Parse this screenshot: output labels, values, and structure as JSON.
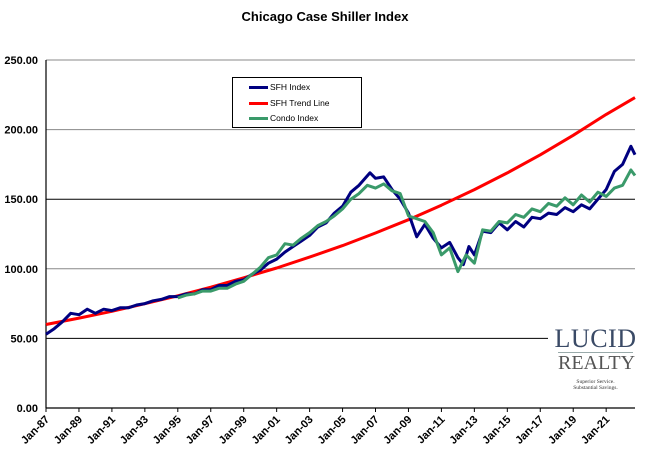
{
  "chart_data": {
    "type": "line",
    "title": "Chicago Case Shiller Index",
    "xlabel": "",
    "ylabel": "",
    "ylim": [
      0,
      250
    ],
    "yticks": [
      "0.00",
      "50.00",
      "100.00",
      "150.00",
      "200.00",
      "250.00"
    ],
    "xticks": [
      "Jan-87",
      "Jan-89",
      "Jan-91",
      "Jan-93",
      "Jan-95",
      "Jan-97",
      "Jan-99",
      "Jan-01",
      "Jan-03",
      "Jan-05",
      "Jan-07",
      "Jan-09",
      "Jan-11",
      "Jan-13",
      "Jan-15",
      "Jan-17",
      "Jan-19",
      "Jan-21"
    ],
    "xrange": [
      "1987-01",
      "2022-10"
    ],
    "grid": true,
    "legend_position": "top-center",
    "series": [
      {
        "name": "SFH Index",
        "color": "#000080",
        "points": [
          [
            "1987-01",
            53
          ],
          [
            "1987-07",
            57
          ],
          [
            "1988-01",
            62
          ],
          [
            "1988-07",
            68
          ],
          [
            "1989-01",
            67
          ],
          [
            "1989-07",
            71
          ],
          [
            "1990-01",
            68
          ],
          [
            "1990-07",
            71
          ],
          [
            "1991-01",
            70
          ],
          [
            "1991-07",
            72
          ],
          [
            "1992-01",
            72
          ],
          [
            "1992-07",
            74
          ],
          [
            "1993-01",
            75
          ],
          [
            "1993-07",
            77
          ],
          [
            "1994-01",
            78
          ],
          [
            "1994-07",
            80
          ],
          [
            "1995-01",
            80
          ],
          [
            "1995-07",
            82
          ],
          [
            "1996-01",
            82
          ],
          [
            "1996-07",
            85
          ],
          [
            "1997-01",
            85
          ],
          [
            "1997-07",
            88
          ],
          [
            "1998-01",
            88
          ],
          [
            "1998-07",
            91
          ],
          [
            "1999-01",
            92
          ],
          [
            "1999-07",
            96
          ],
          [
            "2000-01",
            99
          ],
          [
            "2000-07",
            104
          ],
          [
            "2001-01",
            107
          ],
          [
            "2001-07",
            112
          ],
          [
            "2002-01",
            116
          ],
          [
            "2002-07",
            120
          ],
          [
            "2003-01",
            124
          ],
          [
            "2003-07",
            130
          ],
          [
            "2004-01",
            133
          ],
          [
            "2004-07",
            140
          ],
          [
            "2005-01",
            145
          ],
          [
            "2005-07",
            155
          ],
          [
            "2006-01",
            160
          ],
          [
            "2006-09",
            169
          ],
          [
            "2007-01",
            165
          ],
          [
            "2007-07",
            166
          ],
          [
            "2008-01",
            157
          ],
          [
            "2008-07",
            150
          ],
          [
            "2009-01",
            140
          ],
          [
            "2009-07",
            123
          ],
          [
            "2010-01",
            132
          ],
          [
            "2010-07",
            122
          ],
          [
            "2011-01",
            115
          ],
          [
            "2011-07",
            119
          ],
          [
            "2012-01",
            108
          ],
          [
            "2012-05",
            103
          ],
          [
            "2012-09",
            116
          ],
          [
            "2013-01",
            110
          ],
          [
            "2013-07",
            127
          ],
          [
            "2014-01",
            126
          ],
          [
            "2014-07",
            133
          ],
          [
            "2015-01",
            128
          ],
          [
            "2015-07",
            134
          ],
          [
            "2016-01",
            130
          ],
          [
            "2016-07",
            137
          ],
          [
            "2017-01",
            136
          ],
          [
            "2017-07",
            140
          ],
          [
            "2018-01",
            139
          ],
          [
            "2018-07",
            144
          ],
          [
            "2019-01",
            141
          ],
          [
            "2019-07",
            146
          ],
          [
            "2020-01",
            143
          ],
          [
            "2020-07",
            150
          ],
          [
            "2021-01",
            157
          ],
          [
            "2021-07",
            170
          ],
          [
            "2022-01",
            175
          ],
          [
            "2022-07",
            188
          ],
          [
            "2022-10",
            182
          ]
        ]
      },
      {
        "name": "SFH Trend Line",
        "color": "#ff0000",
        "points": [
          [
            "1987-01",
            60
          ],
          [
            "1989-01",
            64.6
          ],
          [
            "1991-01",
            69.5
          ],
          [
            "1993-01",
            74.9
          ],
          [
            "1995-01",
            80.6
          ],
          [
            "1997-01",
            86.8
          ],
          [
            "1999-01",
            93.5
          ],
          [
            "2001-01",
            100.6
          ],
          [
            "2003-01",
            108.4
          ],
          [
            "2005-01",
            116.7
          ],
          [
            "2007-01",
            125.7
          ],
          [
            "2009-01",
            135.3
          ],
          [
            "2011-01",
            145.7
          ],
          [
            "2013-01",
            156.9
          ],
          [
            "2015-01",
            168.9
          ],
          [
            "2017-01",
            181.9
          ],
          [
            "2019-01",
            195.9
          ],
          [
            "2021-01",
            210.9
          ],
          [
            "2022-10",
            223
          ]
        ]
      },
      {
        "name": "Condo Index",
        "color": "#3a9a6a",
        "points": [
          [
            "1995-01",
            79
          ],
          [
            "1995-07",
            81
          ],
          [
            "1996-01",
            82
          ],
          [
            "1996-07",
            84
          ],
          [
            "1997-01",
            84
          ],
          [
            "1997-07",
            86
          ],
          [
            "1998-01",
            86
          ],
          [
            "1998-07",
            89
          ],
          [
            "1999-01",
            91
          ],
          [
            "1999-07",
            96
          ],
          [
            "2000-01",
            101
          ],
          [
            "2000-07",
            108
          ],
          [
            "2001-01",
            110
          ],
          [
            "2001-07",
            118
          ],
          [
            "2002-01",
            117
          ],
          [
            "2002-07",
            122
          ],
          [
            "2003-01",
            126
          ],
          [
            "2003-07",
            131
          ],
          [
            "2004-01",
            134
          ],
          [
            "2004-07",
            138
          ],
          [
            "2005-01",
            143
          ],
          [
            "2005-07",
            150
          ],
          [
            "2006-01",
            154
          ],
          [
            "2006-07",
            160
          ],
          [
            "2007-01",
            158
          ],
          [
            "2007-07",
            161
          ],
          [
            "2008-01",
            156
          ],
          [
            "2008-07",
            154
          ],
          [
            "2009-01",
            138
          ],
          [
            "2009-07",
            136
          ],
          [
            "2010-01",
            134
          ],
          [
            "2010-07",
            126
          ],
          [
            "2011-01",
            110
          ],
          [
            "2011-07",
            115
          ],
          [
            "2012-01",
            98
          ],
          [
            "2012-07",
            110
          ],
          [
            "2013-01",
            104
          ],
          [
            "2013-07",
            128
          ],
          [
            "2014-01",
            127
          ],
          [
            "2014-07",
            134
          ],
          [
            "2015-01",
            133
          ],
          [
            "2015-07",
            139
          ],
          [
            "2016-01",
            137
          ],
          [
            "2016-07",
            143
          ],
          [
            "2017-01",
            141
          ],
          [
            "2017-07",
            147
          ],
          [
            "2018-01",
            145
          ],
          [
            "2018-07",
            151
          ],
          [
            "2019-01",
            146
          ],
          [
            "2019-07",
            153
          ],
          [
            "2020-01",
            148
          ],
          [
            "2020-07",
            155
          ],
          [
            "2021-01",
            152
          ],
          [
            "2021-07",
            158
          ],
          [
            "2022-01",
            160
          ],
          [
            "2022-07",
            171
          ],
          [
            "2022-10",
            167
          ]
        ]
      }
    ]
  },
  "logo": {
    "line1": "LUCID",
    "line2": "REALTY",
    "tagline1": "Superior Service.",
    "tagline2": "Substantial Savings."
  }
}
